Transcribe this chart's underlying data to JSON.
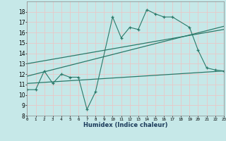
{
  "bg_color": "#c6e8e8",
  "grid_color": "#e8c8c8",
  "line_color": "#2a7a6a",
  "xlabel": "Humidex (Indice chaleur)",
  "xlim": [
    0,
    23
  ],
  "ylim": [
    8,
    19
  ],
  "xticks": [
    0,
    1,
    2,
    3,
    4,
    5,
    6,
    7,
    8,
    9,
    10,
    11,
    12,
    13,
    14,
    15,
    16,
    17,
    18,
    19,
    20,
    21,
    22,
    23
  ],
  "yticks": [
    8,
    9,
    10,
    11,
    12,
    13,
    14,
    15,
    16,
    17,
    18
  ],
  "main_x": [
    0,
    1,
    2,
    3,
    4,
    5,
    6,
    7,
    8,
    10,
    11,
    12,
    13,
    14,
    15,
    16,
    17,
    19,
    20,
    21,
    22,
    23
  ],
  "main_y": [
    10.5,
    10.5,
    12.3,
    11.1,
    12.0,
    11.7,
    11.7,
    8.6,
    10.3,
    17.5,
    15.5,
    16.5,
    16.3,
    18.2,
    17.8,
    17.5,
    17.5,
    16.5,
    14.3,
    12.6,
    12.4,
    12.3
  ],
  "trend1_x": [
    0,
    23
  ],
  "trend1_y": [
    11.8,
    16.6
  ],
  "trend2_x": [
    0,
    23
  ],
  "trend2_y": [
    13.0,
    16.3
  ],
  "trend3_x": [
    0,
    23
  ],
  "trend3_y": [
    11.1,
    12.3
  ]
}
